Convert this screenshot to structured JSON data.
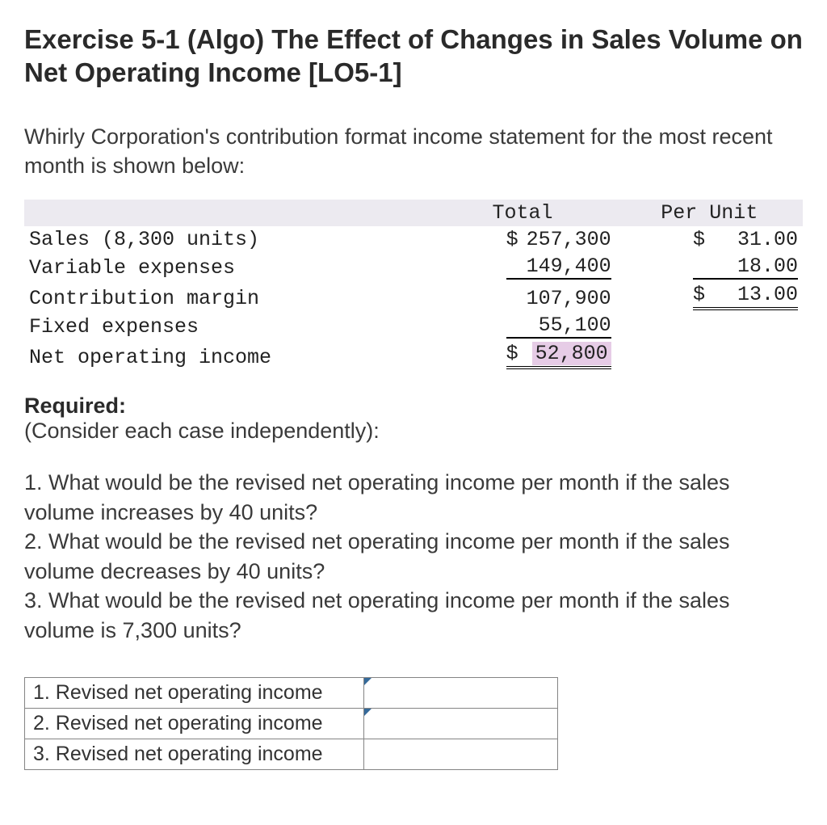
{
  "title": "Exercise 5-1 (Algo) The Effect of Changes in Sales Volume on Net Operating Income [LO5-1]",
  "intro": "Whirly Corporation's contribution format income statement for the most recent month is shown below:",
  "income": {
    "headers": {
      "total": "Total",
      "per_unit": "Per Unit"
    },
    "rows": {
      "sales": {
        "label": "Sales (8,300 units)",
        "total_sym": "$",
        "total": "257,300",
        "pu_sym": "$",
        "pu": "31.00"
      },
      "varexp": {
        "label": "Variable expenses",
        "total_sym": "",
        "total": "149,400",
        "pu_sym": "",
        "pu": "18.00"
      },
      "cm": {
        "label": "Contribution margin",
        "total_sym": "",
        "total": "107,900",
        "pu_sym": "$",
        "pu": "13.00"
      },
      "fixed": {
        "label": "Fixed expenses",
        "total_sym": "",
        "total": "55,100"
      },
      "noi": {
        "label": "Net operating income",
        "total_sym": "$",
        "total": "52,800"
      }
    },
    "highlight_bg": "#e6cce6",
    "header_bg": "#eceaf0"
  },
  "required": {
    "label": "Required:",
    "subnote": "(Consider each case independently):",
    "q1": "1. What would be the revised net operating income per month if the sales volume increases by 40 units?",
    "q2": "2. What would be the revised net operating income per month if the sales volume decreases by 40 units?",
    "q3": "3. What would be the revised net operating income per month if the sales volume is 7,300 units?"
  },
  "answers": {
    "rows": [
      {
        "label": "1. Revised net operating income",
        "value": ""
      },
      {
        "label": "2. Revised net operating income",
        "value": ""
      },
      {
        "label": "3. Revised net operating income",
        "value": ""
      }
    ],
    "marker_color": "#356a9a",
    "border_color": "#848484"
  }
}
